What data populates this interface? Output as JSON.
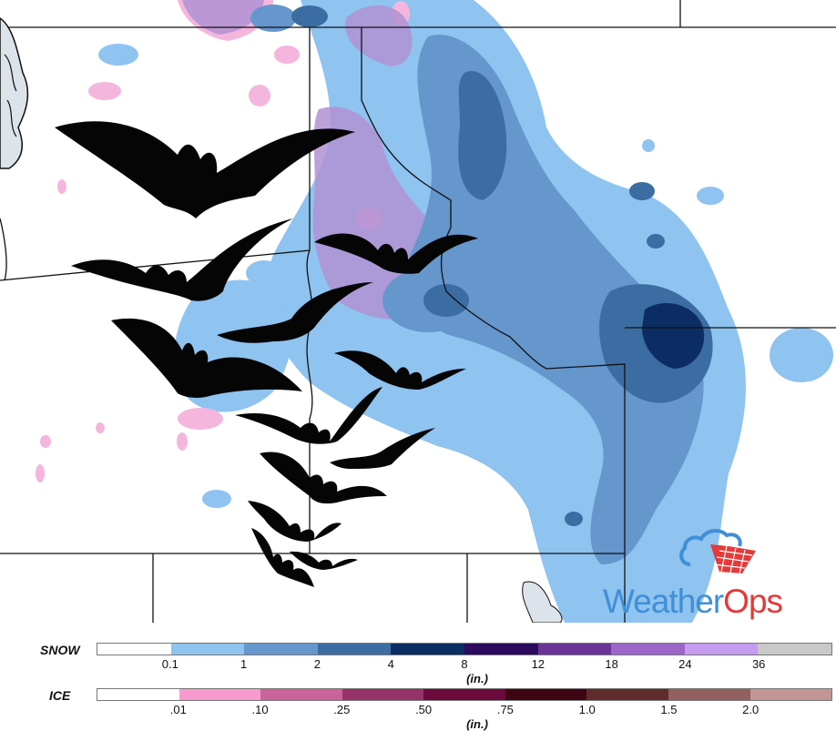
{
  "brand": {
    "logo_part1": "Weather",
    "logo_part2": "Ops",
    "colors": {
      "part1": "#3f8fd6",
      "part2": "#e43a3a"
    }
  },
  "legend": {
    "snow": {
      "label": "SNOW",
      "unit": "(in.)",
      "ticks": [
        "0.1",
        "1",
        "2",
        "4",
        "8",
        "12",
        "18",
        "24",
        "36"
      ],
      "colors": [
        "#ffffff",
        "#8fc3f0",
        "#6596cc",
        "#3b6da3",
        "#0b2d63",
        "#2c0a5e",
        "#6a3497",
        "#9c66c9",
        "#c59cf0",
        "#c9c9c9"
      ]
    },
    "ice": {
      "label": "ICE",
      "unit": "(in.)",
      "ticks": [
        ".01",
        ".10",
        ".25",
        ".50",
        ".75",
        "1.0",
        "1.5",
        "2.0"
      ],
      "colors": [
        "#ffffff",
        "#f79bcf",
        "#c9639a",
        "#98326a",
        "#6b0a3c",
        "#3e0614",
        "#5f2b2b",
        "#936060",
        "#c29595"
      ]
    }
  },
  "map": {
    "features": [
      "state-boundaries",
      "snow-accumulation",
      "ice-accumulation",
      "bat-silhouettes",
      "great-salt-lake-fragment",
      "puget-sound-coast"
    ]
  }
}
